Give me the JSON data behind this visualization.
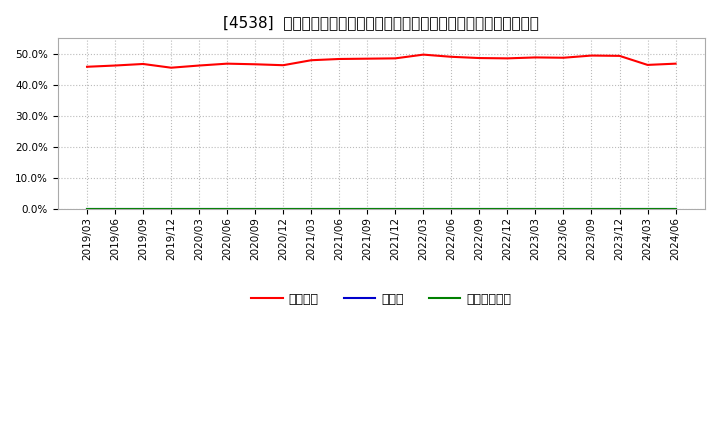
{
  "title": "[4538]  自己資本、のれん、繰延税金資産の総資産に対する比率の推移",
  "x_labels": [
    "2019/03",
    "2019/06",
    "2019/09",
    "2019/12",
    "2020/03",
    "2020/06",
    "2020/09",
    "2020/12",
    "2021/03",
    "2021/06",
    "2021/09",
    "2021/12",
    "2022/03",
    "2022/06",
    "2022/09",
    "2022/12",
    "2023/03",
    "2023/06",
    "2023/09",
    "2023/12",
    "2024/03",
    "2024/06"
  ],
  "equity_ratio": [
    45.8,
    46.2,
    46.7,
    45.5,
    46.2,
    46.8,
    46.6,
    46.3,
    47.9,
    48.3,
    48.4,
    48.5,
    49.7,
    49.0,
    48.6,
    48.5,
    48.8,
    48.7,
    49.4,
    49.3,
    46.4,
    46.8
  ],
  "noren_ratio": [
    0.0,
    0.0,
    0.0,
    0.0,
    0.0,
    0.0,
    0.0,
    0.0,
    0.0,
    0.0,
    0.0,
    0.0,
    0.0,
    0.0,
    0.0,
    0.0,
    0.0,
    0.0,
    0.0,
    0.0,
    0.0,
    0.0
  ],
  "deferred_tax_ratio": [
    0.0,
    0.0,
    0.0,
    0.0,
    0.0,
    0.0,
    0.0,
    0.0,
    0.0,
    0.0,
    0.0,
    0.0,
    0.0,
    0.0,
    0.0,
    0.0,
    0.0,
    0.0,
    0.0,
    0.0,
    0.0,
    0.0
  ],
  "equity_color": "#ff0000",
  "noren_color": "#0000cc",
  "deferred_tax_color": "#008000",
  "legend_labels": [
    "自己資本",
    "のれん",
    "繰延税金資産"
  ],
  "ylim": [
    0.0,
    55.0
  ],
  "yticks": [
    0,
    10,
    20,
    30,
    40,
    50
  ],
  "ytick_labels": [
    "0.0%",
    "10.0%",
    "20.0%",
    "30.0%",
    "40.0%",
    "50.0%"
  ],
  "background_color": "#ffffff",
  "plot_bg_color": "#ffffff",
  "grid_color": "#bbbbbb",
  "title_fontsize": 11,
  "tick_fontsize": 7.5,
  "legend_fontsize": 9
}
